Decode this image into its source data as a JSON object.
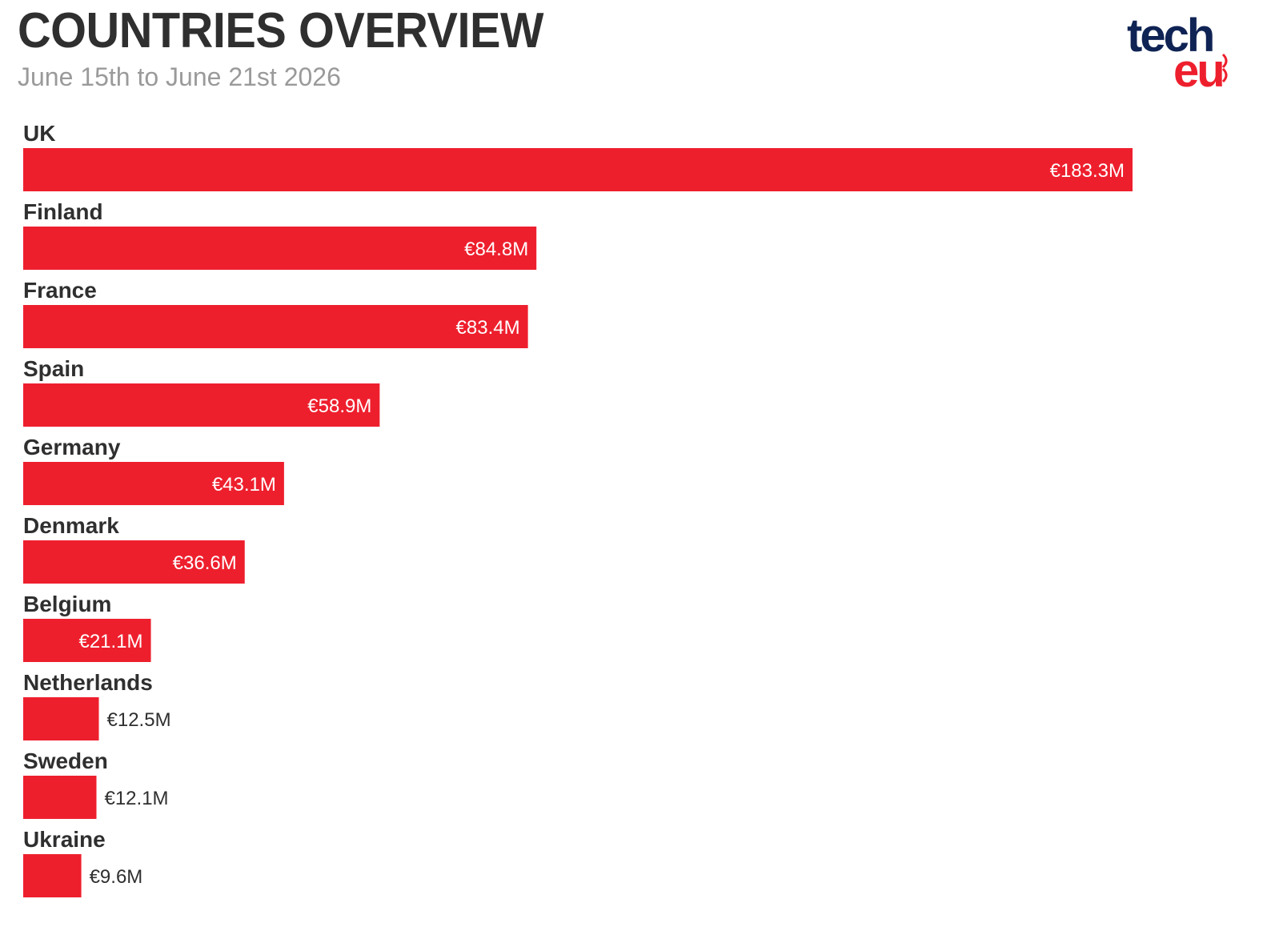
{
  "header": {
    "title": "COUNTRIES OVERVIEW",
    "subtitle": "June 15th to June 21st 2026"
  },
  "logo": {
    "line1": "tech",
    "line2": "eu",
    "colors": {
      "tech": "#0f2354",
      "eu": "#ee1f2d"
    }
  },
  "chart_data": {
    "type": "bar",
    "orientation": "horizontal",
    "categories": [
      "UK",
      "Finland",
      "France",
      "Spain",
      "Germany",
      "Denmark",
      "Belgium",
      "Netherlands",
      "Sweden",
      "Ukraine"
    ],
    "values": [
      183.3,
      84.8,
      83.4,
      58.9,
      43.1,
      36.6,
      21.1,
      12.5,
      12.1,
      9.6
    ],
    "value_labels": [
      "€183.3M",
      "€84.8M",
      "€83.4M",
      "€58.9M",
      "€43.1M",
      "€36.6M",
      "€21.1M",
      "€12.5M",
      "€12.1M",
      "€9.6M"
    ],
    "title": "COUNTRIES OVERVIEW",
    "subtitle": "June 15th to June 21st 2026",
    "xlabel": "",
    "ylabel": "",
    "xlim": [
      0,
      183.3
    ],
    "grid": false,
    "bar_color": "#ee1f2d"
  }
}
